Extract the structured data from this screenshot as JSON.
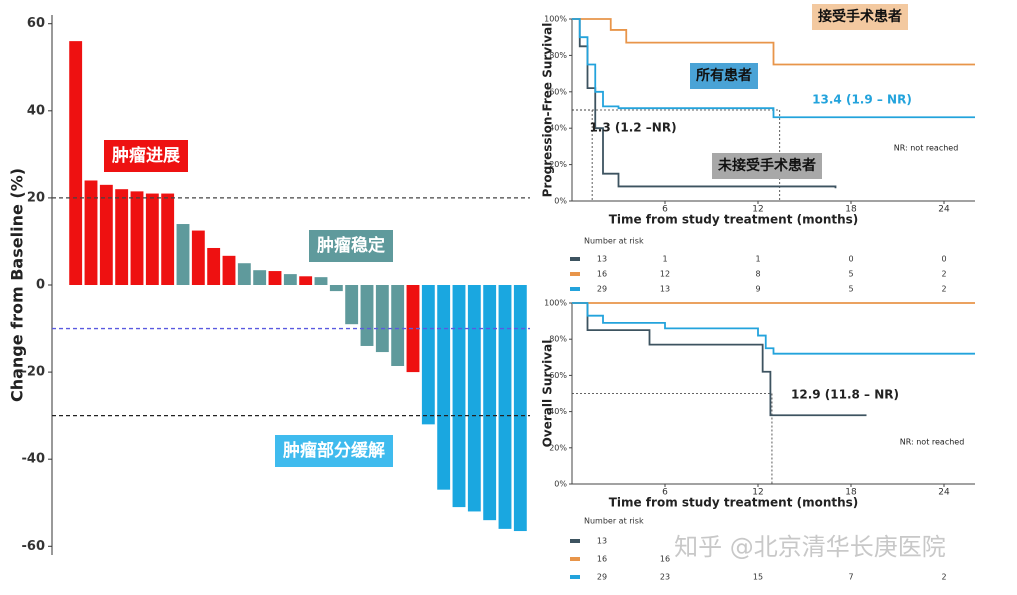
{
  "chart_data": [
    {
      "type": "bar",
      "ylabel": "Change from Baseline (%)",
      "ylim": [
        -62,
        62
      ],
      "yticks": [
        60,
        40,
        20,
        0,
        -20,
        -40,
        -60
      ],
      "series": [
        {
          "name": "肿瘤进展",
          "color": "#ee1111",
          "values": [
            56,
            24,
            23,
            22,
            21.5,
            21,
            21,
            null,
            12.5,
            8.5,
            6.7,
            null,
            null,
            3.2,
            null,
            2,
            null,
            null,
            null,
            null,
            null,
            null,
            -20,
            null,
            null,
            null,
            null,
            null,
            null,
            null
          ]
        },
        {
          "name": "肿瘤稳定",
          "color": "#5f9a9c",
          "values": [
            null,
            null,
            null,
            null,
            null,
            null,
            null,
            14,
            null,
            null,
            null,
            5,
            3.4,
            null,
            2.5,
            null,
            1.8,
            -1.4,
            -9,
            -14,
            -15.4,
            -18.6,
            null,
            null,
            null,
            null,
            null,
            null,
            null,
            null
          ]
        },
        {
          "name": "肿瘤部分缓解",
          "color": "#1aa7e0",
          "values": [
            null,
            null,
            null,
            null,
            null,
            null,
            null,
            null,
            null,
            null,
            null,
            null,
            null,
            null,
            null,
            null,
            null,
            null,
            null,
            null,
            null,
            null,
            null,
            -32,
            -47,
            -51,
            -52,
            -54,
            -56,
            -56.5
          ]
        }
      ],
      "reference_lines": [
        {
          "value": 20,
          "color": "#444444"
        },
        {
          "value": -10,
          "color": "#5a5ae0"
        },
        {
          "value": -30,
          "color": "#222222"
        }
      ]
    },
    {
      "type": "step",
      "ylabel": "Progression-Free Survival",
      "xlabel": "Time from study treatment (months)",
      "xlim": [
        0,
        26
      ],
      "xticks": [
        6,
        12,
        18,
        24
      ],
      "ylim": [
        0,
        100
      ],
      "yticks": [
        {
          "value": 0,
          "label": "0%"
        },
        {
          "value": 20,
          "label": "20%"
        },
        {
          "value": 40,
          "label": "40%"
        },
        {
          "value": 60,
          "label": "60%"
        },
        {
          "value": 80,
          "label": "80%"
        },
        {
          "value": 100,
          "label": "100%"
        }
      ],
      "legend": true,
      "series": [
        {
          "name": "未接受手术患者",
          "color": "#3d5360",
          "x": [
            0,
            0.5,
            1,
            1.5,
            2,
            3,
            17
          ],
          "values": [
            100,
            85,
            62,
            40,
            15,
            8,
            7
          ]
        },
        {
          "name": "接受手术患者",
          "color": "#e8954a",
          "x": [
            0,
            2.5,
            3.5,
            13,
            26
          ],
          "values": [
            100,
            94,
            87,
            75,
            75
          ]
        },
        {
          "name": "所有患者",
          "color": "#23a3dc",
          "x": [
            0,
            0.5,
            1,
            1.5,
            2,
            3,
            13,
            26
          ],
          "values": [
            100,
            90,
            75,
            60,
            52,
            51,
            46,
            46
          ]
        }
      ],
      "medians": [
        1.3,
        13.4
      ],
      "annotations": [
        "1.3 (1.2 –NR)",
        "13.4 (1.9 – NR)",
        "NR: not reached"
      ],
      "risk_table": {
        "label": "Number at risk",
        "rows": [
          [
            13,
            1,
            1,
            0,
            0
          ],
          [
            16,
            12,
            8,
            5,
            2
          ],
          [
            29,
            13,
            9,
            5,
            2
          ]
        ]
      }
    },
    {
      "type": "step",
      "ylabel": "Overall Survival",
      "xlabel": "Time from study treatment (months)",
      "xlim": [
        0,
        26
      ],
      "xticks": [
        6,
        12,
        18,
        24
      ],
      "ylim": [
        0,
        100
      ],
      "yticks": [
        {
          "value": 0,
          "label": "0%"
        },
        {
          "value": 20,
          "label": "20%"
        },
        {
          "value": 40,
          "label": "40%"
        },
        {
          "value": 60,
          "label": "60%"
        },
        {
          "value": 80,
          "label": "80%"
        },
        {
          "value": 100,
          "label": "100%"
        }
      ],
      "legend": false,
      "series": [
        {
          "name": "未接受手术患者",
          "color": "#3d5360",
          "x": [
            0,
            1,
            5,
            12.3,
            12.8,
            19
          ],
          "values": [
            100,
            85,
            77,
            62,
            38,
            38
          ]
        },
        {
          "name": "接受手术患者",
          "color": "#e8954a",
          "x": [
            0,
            26
          ],
          "values": [
            100,
            100
          ]
        },
        {
          "name": "所有患者",
          "color": "#23a3dc",
          "x": [
            0,
            1,
            2,
            6,
            12,
            12.5,
            13,
            26
          ],
          "values": [
            100,
            93,
            89,
            86,
            82,
            75,
            72,
            72
          ]
        }
      ],
      "medians": [
        12.9
      ],
      "annotations": [
        "12.9 (11.8 – NR)",
        "NR: not reached"
      ],
      "risk_table": {
        "label": "Number at risk",
        "rows": [
          [
            13,
            null,
            null,
            null,
            null
          ],
          [
            16,
            16,
            null,
            null,
            null
          ],
          [
            29,
            23,
            15,
            7,
            2
          ]
        ]
      }
    }
  ],
  "watermark": "知乎 @北京清华长庚医院"
}
